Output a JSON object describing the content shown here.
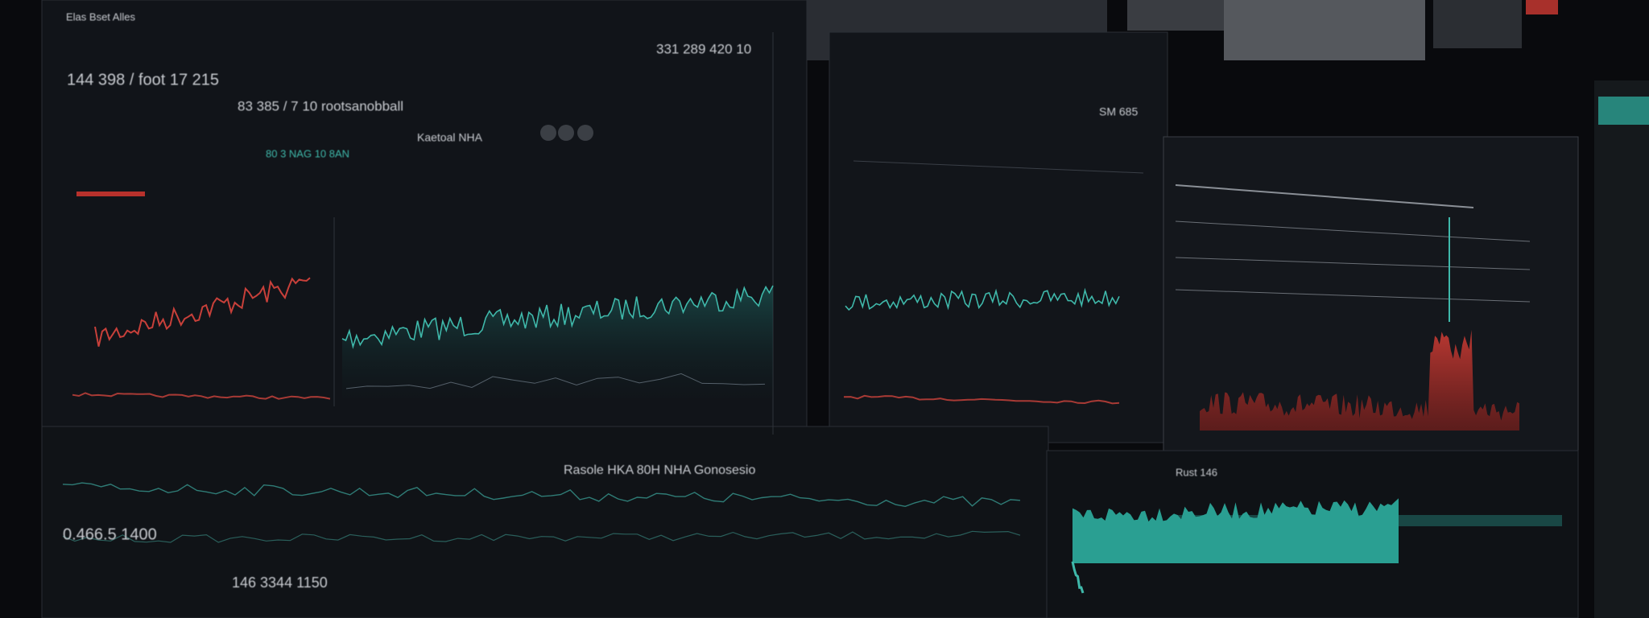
{
  "header": {
    "title": "Elas Bset Alles",
    "top_value": "331 289 420 10"
  },
  "main_panel": {
    "value": "144 398 / foot 17 215",
    "subtitle": "83 385 / 7 10 rootsanobball",
    "note": "Kaetoal NHA",
    "legend": "80 3 NAG 10 8AN"
  },
  "side_panel": {
    "value": "SM 685"
  },
  "bottom_panel": {
    "title": "Rasole HKA 80H NHA Gonosesio",
    "value": "0.466.5 1400",
    "secondary": "146 3344 1150"
  },
  "right_panel": {
    "label": "Rust 146"
  }
}
